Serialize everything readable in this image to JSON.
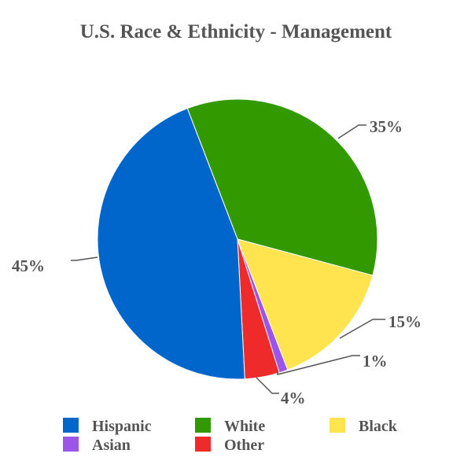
{
  "chart_data": {
    "type": "pie",
    "title": "U.S. Race & Ethnicity - Management",
    "grid": false,
    "legend_position": "bottom",
    "slices": [
      {
        "name": "White",
        "value": 35,
        "label": "35%",
        "color": "#339900"
      },
      {
        "name": "Black",
        "value": 15,
        "label": "15%",
        "color": "#FFE34F"
      },
      {
        "name": "Asian",
        "value": 1,
        "label": "1%",
        "color": "#9B55E8"
      },
      {
        "name": "Other",
        "value": 4,
        "label": "4%",
        "color": "#EE2A2A"
      },
      {
        "name": "Hispanic",
        "value": 45,
        "label": "45%",
        "color": "#0066CC"
      }
    ],
    "legend": [
      {
        "name": "Hispanic",
        "color": "#0066CC"
      },
      {
        "name": "White",
        "color": "#339900"
      },
      {
        "name": "Black",
        "color": "#FFE34F"
      },
      {
        "name": "Asian",
        "color": "#9B55E8"
      },
      {
        "name": "Other",
        "color": "#EE2A2A"
      }
    ]
  }
}
